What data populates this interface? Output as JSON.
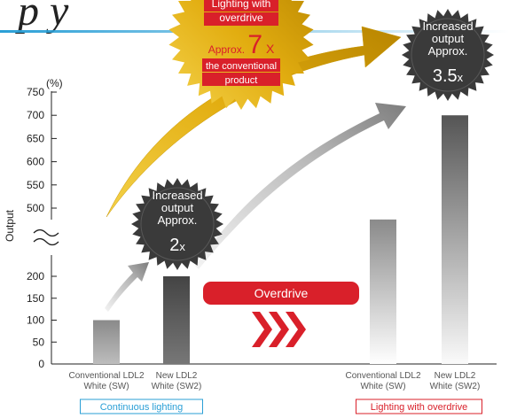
{
  "chart_data": {
    "type": "bar",
    "title": "",
    "ylabel": "Output",
    "yunit": "(%)",
    "y_ticks_lower": [
      0,
      50,
      100,
      150,
      200
    ],
    "y_ticks_upper": [
      500,
      550,
      600,
      650,
      700,
      750
    ],
    "axis_break": "between 200 and 500",
    "groups": [
      {
        "label": "Continuous lighting",
        "color": "#2a9fd6",
        "bars": [
          {
            "category": [
              "Conventional LDL2",
              "White (SW)"
            ],
            "value": 100,
            "color": "#9a9a9a"
          },
          {
            "category": [
              "New LDL2",
              "White (SW2)"
            ],
            "value": 200,
            "color": "#555555"
          }
        ]
      },
      {
        "label": "Lighting with overdrive",
        "color": "#d9202a",
        "bars": [
          {
            "category": [
              "Conventional LDL2",
              "White (SW)"
            ],
            "value": 450,
            "color": "#9a9a9a"
          },
          {
            "category": [
              "New LDL2",
              "White (SW2)"
            ],
            "value": 700,
            "color": "#555555"
          }
        ]
      }
    ],
    "overdrive_label": "Overdrive",
    "badges": [
      {
        "lines": [
          "Increased",
          "output",
          "Approx."
        ],
        "factor": "2",
        "suffix": "x"
      },
      {
        "lines": [
          "Increased",
          "output",
          "Approx."
        ],
        "factor": "3.5",
        "suffix": "x"
      },
      {
        "lines": [
          "Lighting with",
          "overdrive",
          "Approx."
        ],
        "factor": "7",
        "suffix": "x",
        "tail": [
          "the conventional",
          "product"
        ]
      }
    ],
    "heading_fragment": "p y"
  },
  "colors": {
    "accent_red": "#d9202a",
    "accent_blue": "#2a9fd6",
    "gold": "#e6b411"
  }
}
